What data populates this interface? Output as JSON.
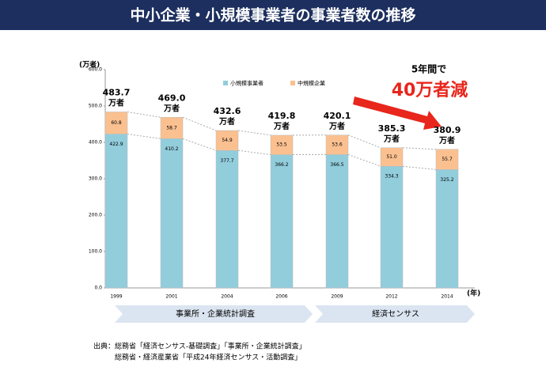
{
  "header": {
    "title": "中小企業・小規模事業者の事業者数の推移"
  },
  "chart_data": {
    "type": "stacked_bar",
    "y_label": "(万者)",
    "x_label": "(年)",
    "categories": [
      "1999",
      "2001",
      "2004",
      "2006",
      "2009",
      "2012",
      "2014"
    ],
    "series": [
      {
        "name": "小規模事業者",
        "color": "#92cddc",
        "values": [
          422.9,
          410.2,
          377.7,
          366.2,
          366.5,
          334.3,
          325.2
        ],
        "value_labels": [
          "422.9",
          "410.2",
          "377.7",
          "366.2",
          "366.5",
          "334.3",
          "325.2"
        ]
      },
      {
        "name": "中規模企業",
        "color": "#fac090",
        "values": [
          60.8,
          58.7,
          54.9,
          53.5,
          53.6,
          51.0,
          55.7
        ],
        "value_labels": [
          "60.8",
          "58.7",
          "54.9",
          "53.5",
          "53.6",
          "51.0",
          "55.7"
        ]
      }
    ],
    "totals": [
      483.7,
      469.0,
      432.6,
      419.8,
      420.1,
      385.3,
      380.9
    ],
    "total_labels": [
      "483.7",
      "469.0",
      "432.6",
      "419.8",
      "420.1",
      "385.3",
      "380.9"
    ],
    "total_unit": "万者",
    "ylim": [
      0,
      600
    ],
    "yticks": [
      {
        "value": 0,
        "label": "0.0"
      },
      {
        "value": 100,
        "label": "100.0"
      },
      {
        "value": 200,
        "label": "200.0"
      },
      {
        "value": 300,
        "label": "300.0"
      },
      {
        "value": 400,
        "label": "400.0"
      },
      {
        "value": 500,
        "label": "500.0"
      },
      {
        "value": 600,
        "label": "600.0"
      }
    ],
    "annotation": {
      "line1": "5年間で",
      "line2": "40万者減"
    },
    "periods": [
      "事業所・企業統計調査",
      "経済センサス"
    ]
  },
  "source": {
    "lines": [
      "出典：総務省「経済センサス‐基礎調査」「事業所・企業統計調査」",
      "総務省・経済産業省「平成24年経済センサス・活動調査」"
    ]
  }
}
